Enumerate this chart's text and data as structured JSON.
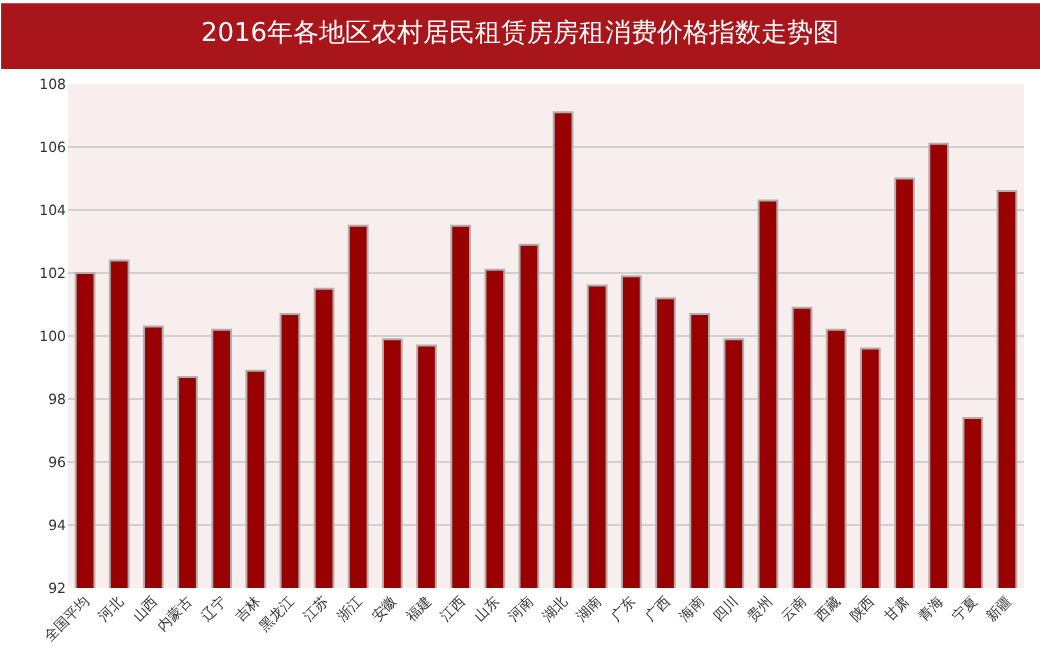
{
  "chart_data": {
    "type": "bar",
    "title": "2016年各地区农村居民租赁房房租消费价格指数走势图",
    "categories": [
      "全国平均",
      "河北",
      "山西",
      "内蒙古",
      "辽宁",
      "吉林",
      "黑龙江",
      "江苏",
      "浙江",
      "安徽",
      "福建",
      "江西",
      "山东",
      "河南",
      "湖北",
      "湖南",
      "广东",
      "广西",
      "海南",
      "四川",
      "贵州",
      "云南",
      "西藏",
      "陕西",
      "甘肃",
      "青海",
      "宁夏",
      "新疆"
    ],
    "values": [
      102.0,
      102.4,
      100.3,
      98.7,
      100.2,
      98.9,
      100.7,
      101.5,
      103.5,
      99.9,
      99.7,
      103.5,
      102.1,
      102.9,
      107.1,
      101.6,
      101.9,
      101.2,
      100.7,
      99.9,
      104.3,
      100.9,
      100.2,
      99.6,
      105.0,
      106.1,
      97.4,
      104.6
    ],
    "color": "#990000",
    "ylim": [
      92,
      108
    ],
    "yticks": [
      92,
      94,
      96,
      98,
      100,
      102,
      104,
      106,
      108
    ],
    "grid": "y"
  }
}
